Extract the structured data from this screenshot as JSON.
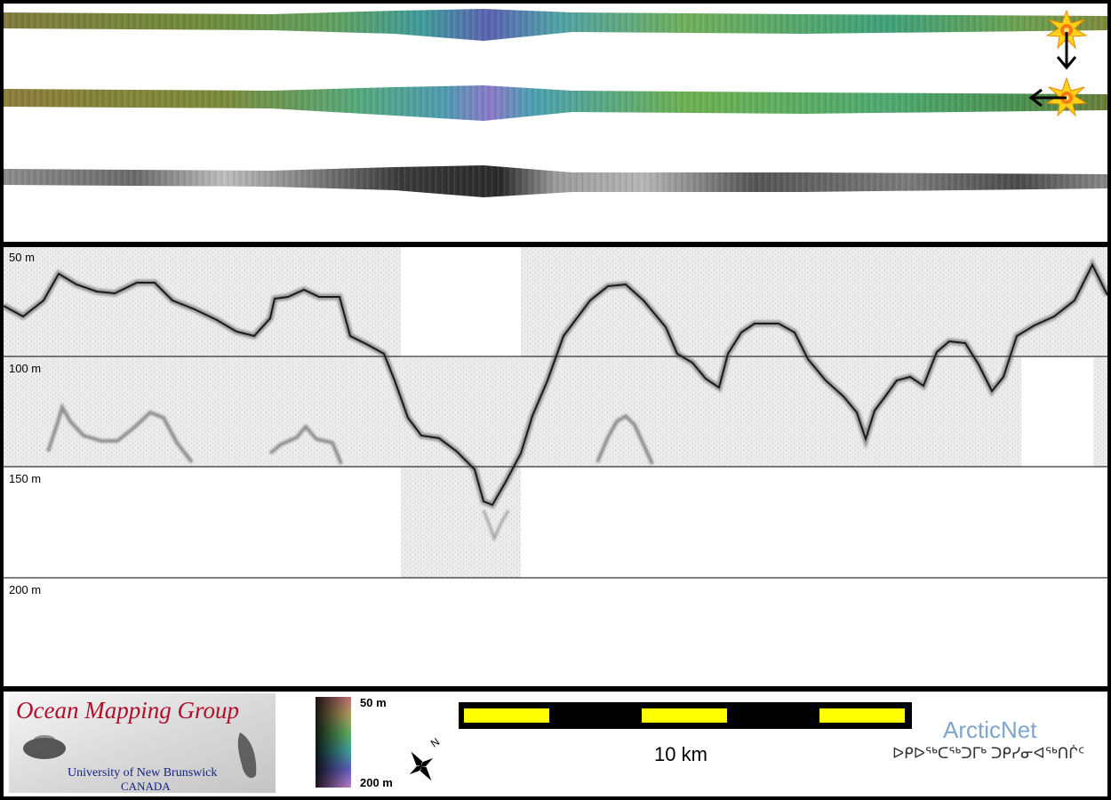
{
  "profile": {
    "depth_labels": [
      "50 m",
      "100 m",
      "150 m",
      "200 m"
    ]
  },
  "legend": {
    "org_name": "Ocean Mapping Group",
    "university": "University of New Brunswick",
    "country": "CANADA",
    "colorbar": {
      "top_label": "50 m",
      "bottom_label": "200 m"
    },
    "north_arrow_label": "N",
    "scale_label": "10 km",
    "partner_name": "ArcticNet",
    "partner_syllabics": "ᐅᑭᐅᖅᑕᖅᑐᒥᒃ ᑐᑭᓯᓂᐊᖅᑎᒌᑦ"
  },
  "colors": {
    "frame": "#000000",
    "scale_yellow": "#ffff00",
    "ogm_red": "#b0102a",
    "ogm_blue": "#13208a",
    "arcticnet_blue": "#7ea6cc"
  }
}
